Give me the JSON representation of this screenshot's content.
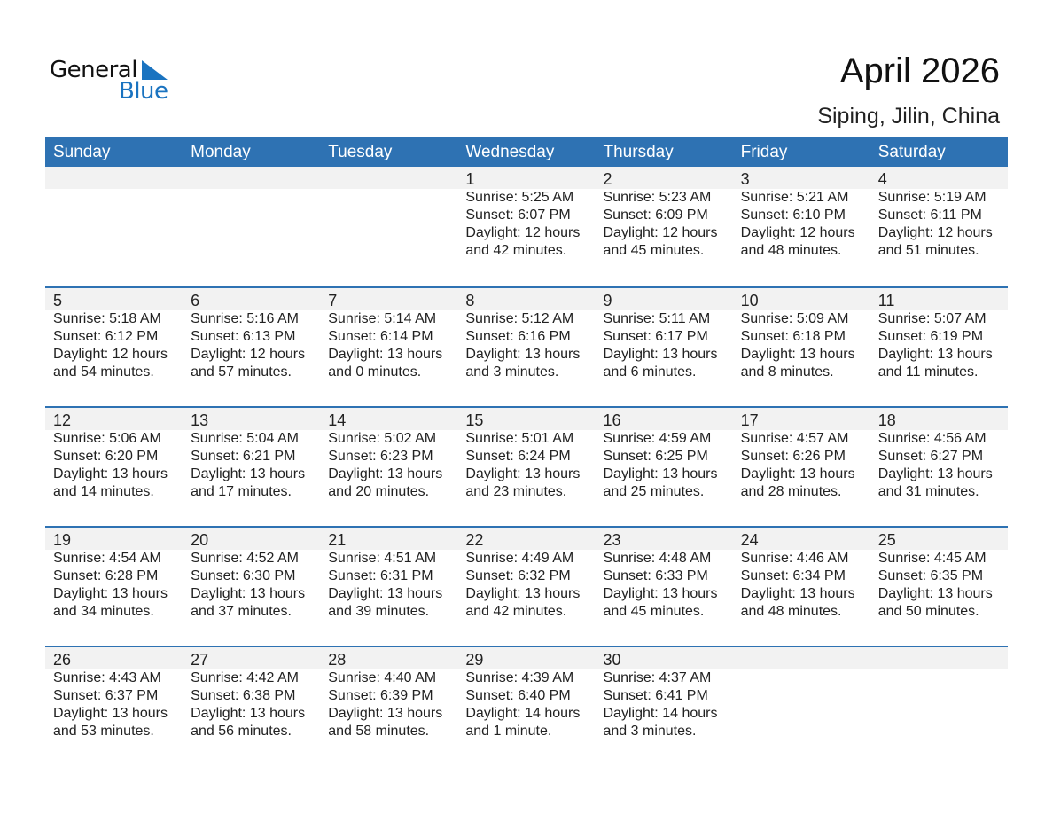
{
  "logo": {
    "general": "General",
    "blue": "Blue",
    "accent": "#1a73c0"
  },
  "header": {
    "title": "April 2026",
    "location": "Siping, Jilin, China"
  },
  "colors": {
    "header_bg": "#2E72B3",
    "date_strip": "#F2F2F2"
  },
  "weekdays": [
    "Sunday",
    "Monday",
    "Tuesday",
    "Wednesday",
    "Thursday",
    "Friday",
    "Saturday"
  ],
  "weeks": [
    [
      null,
      null,
      null,
      {
        "day": "1",
        "sunrise": "Sunrise: 5:25 AM",
        "sunset": "Sunset: 6:07 PM",
        "daylight": "Daylight: 12 hours",
        "minutes": "and 42 minutes."
      },
      {
        "day": "2",
        "sunrise": "Sunrise: 5:23 AM",
        "sunset": "Sunset: 6:09 PM",
        "daylight": "Daylight: 12 hours",
        "minutes": "and 45 minutes."
      },
      {
        "day": "3",
        "sunrise": "Sunrise: 5:21 AM",
        "sunset": "Sunset: 6:10 PM",
        "daylight": "Daylight: 12 hours",
        "minutes": "and 48 minutes."
      },
      {
        "day": "4",
        "sunrise": "Sunrise: 5:19 AM",
        "sunset": "Sunset: 6:11 PM",
        "daylight": "Daylight: 12 hours",
        "minutes": "and 51 minutes."
      }
    ],
    [
      {
        "day": "5",
        "sunrise": "Sunrise: 5:18 AM",
        "sunset": "Sunset: 6:12 PM",
        "daylight": "Daylight: 12 hours",
        "minutes": "and 54 minutes."
      },
      {
        "day": "6",
        "sunrise": "Sunrise: 5:16 AM",
        "sunset": "Sunset: 6:13 PM",
        "daylight": "Daylight: 12 hours",
        "minutes": "and 57 minutes."
      },
      {
        "day": "7",
        "sunrise": "Sunrise: 5:14 AM",
        "sunset": "Sunset: 6:14 PM",
        "daylight": "Daylight: 13 hours",
        "minutes": "and 0 minutes."
      },
      {
        "day": "8",
        "sunrise": "Sunrise: 5:12 AM",
        "sunset": "Sunset: 6:16 PM",
        "daylight": "Daylight: 13 hours",
        "minutes": "and 3 minutes."
      },
      {
        "day": "9",
        "sunrise": "Sunrise: 5:11 AM",
        "sunset": "Sunset: 6:17 PM",
        "daylight": "Daylight: 13 hours",
        "minutes": "and 6 minutes."
      },
      {
        "day": "10",
        "sunrise": "Sunrise: 5:09 AM",
        "sunset": "Sunset: 6:18 PM",
        "daylight": "Daylight: 13 hours",
        "minutes": "and 8 minutes."
      },
      {
        "day": "11",
        "sunrise": "Sunrise: 5:07 AM",
        "sunset": "Sunset: 6:19 PM",
        "daylight": "Daylight: 13 hours",
        "minutes": "and 11 minutes."
      }
    ],
    [
      {
        "day": "12",
        "sunrise": "Sunrise: 5:06 AM",
        "sunset": "Sunset: 6:20 PM",
        "daylight": "Daylight: 13 hours",
        "minutes": "and 14 minutes."
      },
      {
        "day": "13",
        "sunrise": "Sunrise: 5:04 AM",
        "sunset": "Sunset: 6:21 PM",
        "daylight": "Daylight: 13 hours",
        "minutes": "and 17 minutes."
      },
      {
        "day": "14",
        "sunrise": "Sunrise: 5:02 AM",
        "sunset": "Sunset: 6:23 PM",
        "daylight": "Daylight: 13 hours",
        "minutes": "and 20 minutes."
      },
      {
        "day": "15",
        "sunrise": "Sunrise: 5:01 AM",
        "sunset": "Sunset: 6:24 PM",
        "daylight": "Daylight: 13 hours",
        "minutes": "and 23 minutes."
      },
      {
        "day": "16",
        "sunrise": "Sunrise: 4:59 AM",
        "sunset": "Sunset: 6:25 PM",
        "daylight": "Daylight: 13 hours",
        "minutes": "and 25 minutes."
      },
      {
        "day": "17",
        "sunrise": "Sunrise: 4:57 AM",
        "sunset": "Sunset: 6:26 PM",
        "daylight": "Daylight: 13 hours",
        "minutes": "and 28 minutes."
      },
      {
        "day": "18",
        "sunrise": "Sunrise: 4:56 AM",
        "sunset": "Sunset: 6:27 PM",
        "daylight": "Daylight: 13 hours",
        "minutes": "and 31 minutes."
      }
    ],
    [
      {
        "day": "19",
        "sunrise": "Sunrise: 4:54 AM",
        "sunset": "Sunset: 6:28 PM",
        "daylight": "Daylight: 13 hours",
        "minutes": "and 34 minutes."
      },
      {
        "day": "20",
        "sunrise": "Sunrise: 4:52 AM",
        "sunset": "Sunset: 6:30 PM",
        "daylight": "Daylight: 13 hours",
        "minutes": "and 37 minutes."
      },
      {
        "day": "21",
        "sunrise": "Sunrise: 4:51 AM",
        "sunset": "Sunset: 6:31 PM",
        "daylight": "Daylight: 13 hours",
        "minutes": "and 39 minutes."
      },
      {
        "day": "22",
        "sunrise": "Sunrise: 4:49 AM",
        "sunset": "Sunset: 6:32 PM",
        "daylight": "Daylight: 13 hours",
        "minutes": "and 42 minutes."
      },
      {
        "day": "23",
        "sunrise": "Sunrise: 4:48 AM",
        "sunset": "Sunset: 6:33 PM",
        "daylight": "Daylight: 13 hours",
        "minutes": "and 45 minutes."
      },
      {
        "day": "24",
        "sunrise": "Sunrise: 4:46 AM",
        "sunset": "Sunset: 6:34 PM",
        "daylight": "Daylight: 13 hours",
        "minutes": "and 48 minutes."
      },
      {
        "day": "25",
        "sunrise": "Sunrise: 4:45 AM",
        "sunset": "Sunset: 6:35 PM",
        "daylight": "Daylight: 13 hours",
        "minutes": "and 50 minutes."
      }
    ],
    [
      {
        "day": "26",
        "sunrise": "Sunrise: 4:43 AM",
        "sunset": "Sunset: 6:37 PM",
        "daylight": "Daylight: 13 hours",
        "minutes": "and 53 minutes."
      },
      {
        "day": "27",
        "sunrise": "Sunrise: 4:42 AM",
        "sunset": "Sunset: 6:38 PM",
        "daylight": "Daylight: 13 hours",
        "minutes": "and 56 minutes."
      },
      {
        "day": "28",
        "sunrise": "Sunrise: 4:40 AM",
        "sunset": "Sunset: 6:39 PM",
        "daylight": "Daylight: 13 hours",
        "minutes": "and 58 minutes."
      },
      {
        "day": "29",
        "sunrise": "Sunrise: 4:39 AM",
        "sunset": "Sunset: 6:40 PM",
        "daylight": "Daylight: 14 hours",
        "minutes": "and 1 minute."
      },
      {
        "day": "30",
        "sunrise": "Sunrise: 4:37 AM",
        "sunset": "Sunset: 6:41 PM",
        "daylight": "Daylight: 14 hours",
        "minutes": "and 3 minutes."
      },
      null,
      null
    ]
  ]
}
